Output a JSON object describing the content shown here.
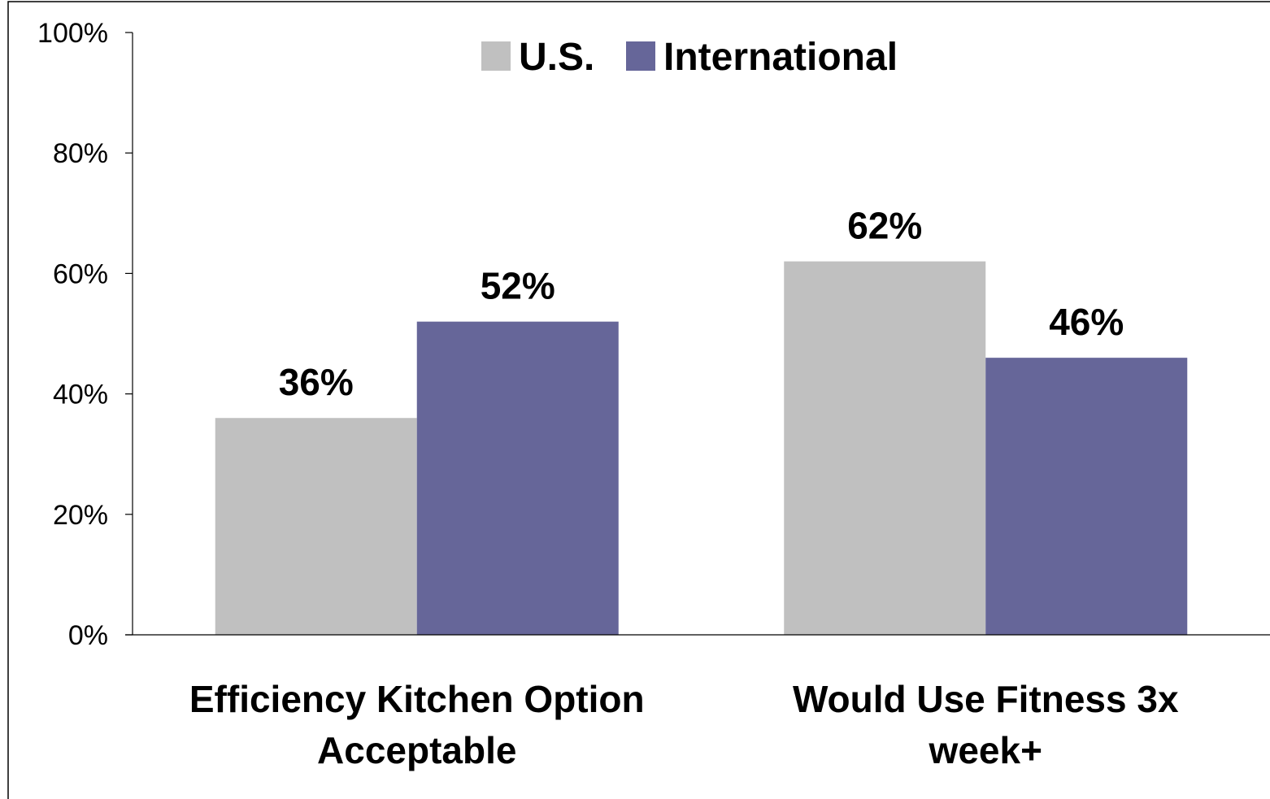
{
  "chart_data": {
    "type": "bar",
    "categories": [
      [
        "Efficiency Kitchen Option",
        "Acceptable"
      ],
      [
        "Would Use Fitness 3x",
        "week+"
      ]
    ],
    "series": [
      {
        "name": "U.S.",
        "values": [
          36,
          62
        ],
        "labels": [
          "36%",
          "62%"
        ]
      },
      {
        "name": "International",
        "values": [
          52,
          46
        ],
        "labels": [
          "52%",
          "46%"
        ]
      }
    ],
    "ylim": [
      0,
      100
    ],
    "yticks": [
      0,
      20,
      40,
      60,
      80,
      100
    ],
    "ytick_labels": [
      "0%",
      "20%",
      "40%",
      "60%",
      "80%",
      "100%"
    ],
    "legend_position": "top-center",
    "grid": false
  },
  "colors": {
    "U.S.": "#c0c0c0",
    "International": "#666699"
  }
}
